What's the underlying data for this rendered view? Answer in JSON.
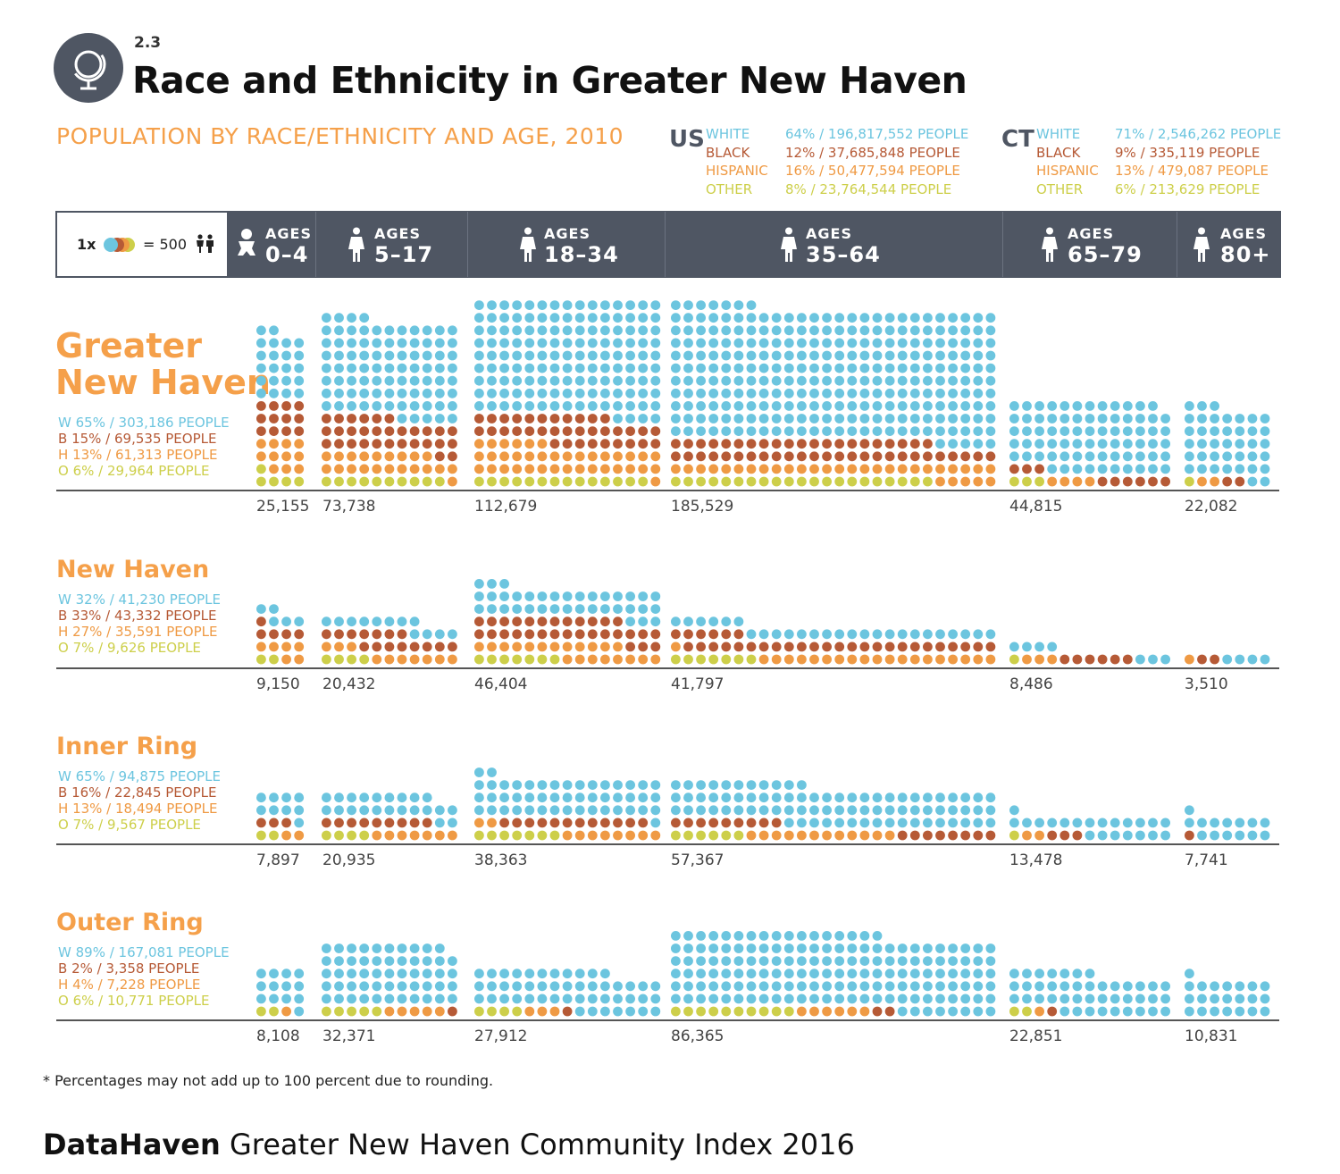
{
  "header": {
    "section_number": "2.3",
    "title": "Race and Ethnicity in Greater New Haven",
    "subtitle": "POPULATION BY RACE/ETHNICITY AND AGE, 2010",
    "globe_icon": "globe-icon"
  },
  "reference": [
    {
      "code": "US",
      "rows": [
        {
          "label": "WHITE",
          "value": "64% / 196,817,552 PEOPLE",
          "color": "#6cc5df"
        },
        {
          "label": "BLACK",
          "value": "12% / 37,685,848 PEOPLE",
          "color": "#b65a36"
        },
        {
          "label": "HISPANIC",
          "value": "16% / 50,477,594 PEOPLE",
          "color": "#ef9a44"
        },
        {
          "label": "OTHER",
          "value": "8% / 23,764,544 PEOPLE",
          "color": "#cdcf4a"
        }
      ]
    },
    {
      "code": "CT",
      "rows": [
        {
          "label": "WHITE",
          "value": "71% / 2,546,262 PEOPLE",
          "color": "#6cc5df"
        },
        {
          "label": "BLACK",
          "value": "9% / 335,119 PEOPLE",
          "color": "#b65a36"
        },
        {
          "label": "HISPANIC",
          "value": "13% / 479,087 PEOPLE",
          "color": "#ef9a44"
        },
        {
          "label": "OTHER",
          "value": "6% / 213,629 PEOPLE",
          "color": "#cdcf4a"
        }
      ]
    }
  ],
  "legend": {
    "multiplier": "1x",
    "equals": "= 500",
    "people_icon": "people-icon"
  },
  "age_groups": [
    {
      "word": "AGES",
      "range": "0–4",
      "icon": "baby-icon"
    },
    {
      "word": "AGES",
      "range": "5–17",
      "icon": "person-icon"
    },
    {
      "word": "AGES",
      "range": "18–34",
      "icon": "person-icon"
    },
    {
      "word": "AGES",
      "range": "35–64",
      "icon": "person-icon"
    },
    {
      "word": "AGES",
      "range": "65–79",
      "icon": "person-icon"
    },
    {
      "word": "AGES",
      "range": "80+",
      "icon": "person-icon"
    }
  ],
  "colors": {
    "white": "#6cc5df",
    "black": "#b65a36",
    "hispanic": "#ef9a44",
    "other": "#cdcf4a",
    "header_bg": "#4f5663",
    "region_title": "#f5a04a"
  },
  "chart_data": {
    "type": "waffle",
    "unit": "1 dot = 500 people",
    "categories": [
      "AGES 0–4",
      "AGES 5–17",
      "AGES 18–34",
      "AGES 35–64",
      "AGES 65–79",
      "AGES 80+"
    ],
    "regions": [
      {
        "name_lines": [
          "Greater",
          "New Haven"
        ],
        "stats": [
          {
            "prefix": "W",
            "text": "65% / 303,186 PEOPLE",
            "color": "#6cc5df"
          },
          {
            "prefix": "B",
            "text": "15% / 69,535 PEOPLE",
            "color": "#b65a36"
          },
          {
            "prefix": "H",
            "text": "13% / 61,313 PEOPLE",
            "color": "#ef9a44"
          },
          {
            "prefix": "O",
            "text": "6% / 29,964 PEOPLE",
            "color": "#cdcf4a"
          }
        ],
        "totals": [
          "25,155",
          "73,738",
          "112,679",
          "185,529",
          "44,815",
          "22,082"
        ],
        "dots": [
          {
            "other": 5,
            "hispanic": 11,
            "black": 12,
            "white": 22
          },
          {
            "other": 10,
            "hispanic": 21,
            "black": 30,
            "white": 86
          },
          {
            "other": 14,
            "hispanic": 37,
            "black": 35,
            "white": 139
          },
          {
            "other": 21,
            "hispanic": 31,
            "black": 47,
            "white": 272
          },
          {
            "other": 3,
            "hispanic": 4,
            "black": 9,
            "white": 74
          },
          {
            "other": 1,
            "hispanic": 2,
            "black": 2,
            "white": 40
          }
        ]
      },
      {
        "name_lines": [
          "New Haven"
        ],
        "stats": [
          {
            "prefix": "W",
            "text": "32% / 41,230 PEOPLE",
            "color": "#6cc5df"
          },
          {
            "prefix": "B",
            "text": "33% / 43,332 PEOPLE",
            "color": "#b65a36"
          },
          {
            "prefix": "H",
            "text": "27% / 35,591 PEOPLE",
            "color": "#ef9a44"
          },
          {
            "prefix": "O",
            "text": "7% / 9,626 PEOPLE",
            "color": "#cdcf4a"
          }
        ],
        "totals": [
          "9,150",
          "20,432",
          "46,404",
          "41,797",
          "8,486",
          "3,510"
        ],
        "dots": [
          {
            "other": 2,
            "hispanic": 6,
            "black": 5,
            "white": 5
          },
          {
            "other": 4,
            "hispanic": 10,
            "black": 15,
            "white": 12
          },
          {
            "other": 7,
            "hispanic": 20,
            "black": 30,
            "white": 36
          },
          {
            "other": 7,
            "hispanic": 20,
            "black": 31,
            "white": 26
          },
          {
            "other": 1,
            "hispanic": 3,
            "black": 6,
            "white": 7
          },
          {
            "other": 0,
            "hispanic": 1,
            "black": 2,
            "white": 4
          }
        ]
      },
      {
        "name_lines": [
          "Inner Ring"
        ],
        "stats": [
          {
            "prefix": "W",
            "text": "65% / 94,875 PEOPLE",
            "color": "#6cc5df"
          },
          {
            "prefix": "B",
            "text": "16% / 22,845 PEOPLE",
            "color": "#b65a36"
          },
          {
            "prefix": "H",
            "text": "13% / 18,494 PEOPLE",
            "color": "#ef9a44"
          },
          {
            "prefix": "O",
            "text": "7% / 9,567 PEOPLE",
            "color": "#cdcf4a"
          }
        ],
        "totals": [
          "7,897",
          "20,935",
          "38,363",
          "57,367",
          "13,478",
          "7,741"
        ],
        "dots": [
          {
            "other": 2,
            "hispanic": 2,
            "black": 3,
            "white": 9
          },
          {
            "other": 4,
            "hispanic": 7,
            "black": 9,
            "white": 22
          },
          {
            "other": 7,
            "hispanic": 10,
            "black": 12,
            "white": 48
          },
          {
            "other": 6,
            "hispanic": 12,
            "black": 17,
            "white": 80
          },
          {
            "other": 1,
            "hispanic": 2,
            "black": 3,
            "white": 21
          },
          {
            "other": 0,
            "hispanic": 0,
            "black": 1,
            "white": 14
          }
        ]
      },
      {
        "name_lines": [
          "Outer Ring"
        ],
        "stats": [
          {
            "prefix": "W",
            "text": "89% / 167,081 PEOPLE",
            "color": "#6cc5df"
          },
          {
            "prefix": "B",
            "text": "2% / 3,358 PEOPLE",
            "color": "#b65a36"
          },
          {
            "prefix": "H",
            "text": "4% / 7,228 PEOPLE",
            "color": "#ef9a44"
          },
          {
            "prefix": "O",
            "text": "6% / 10,771 PEOPLE",
            "color": "#cdcf4a"
          }
        ],
        "totals": [
          "8,108",
          "32,371",
          "27,912",
          "86,365",
          "22,851",
          "10,831"
        ],
        "dots": [
          {
            "other": 2,
            "hispanic": 1,
            "black": 0,
            "white": 13
          },
          {
            "other": 5,
            "hispanic": 5,
            "black": 1,
            "white": 54
          },
          {
            "other": 4,
            "hispanic": 3,
            "black": 1,
            "white": 48
          },
          {
            "other": 10,
            "hispanic": 6,
            "black": 2,
            "white": 155
          },
          {
            "other": 2,
            "hispanic": 1,
            "black": 1,
            "white": 42
          },
          {
            "other": 0,
            "hispanic": 0,
            "black": 0,
            "white": 22
          }
        ]
      }
    ]
  },
  "footnote": "* Percentages may not add up to 100 percent due to rounding.",
  "footer": {
    "brand": "DataHaven",
    "text": " Greater New Haven Community Index 2016"
  }
}
